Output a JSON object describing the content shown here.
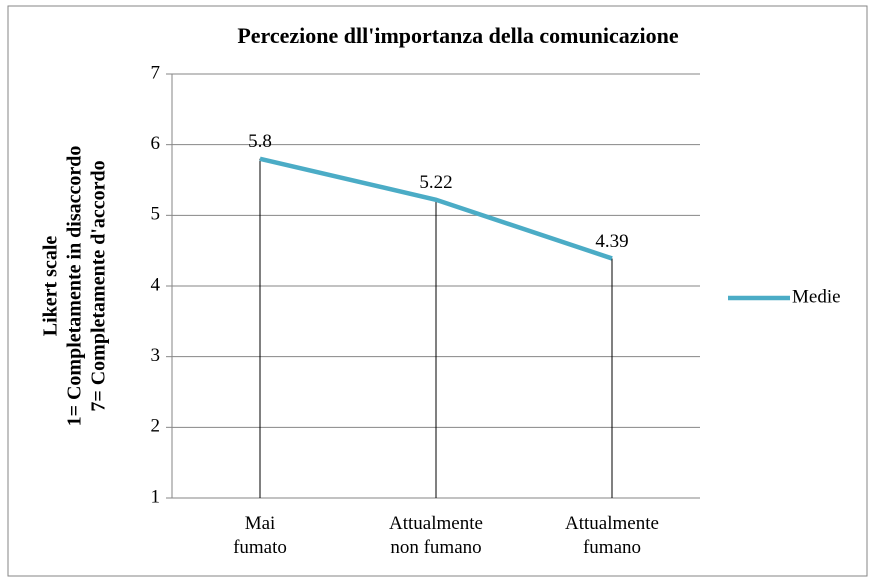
{
  "chart_data": {
    "type": "line",
    "title": "Percezione dll'importanza della comunicazione",
    "ylabel": [
      "Likert scale",
      "1= Completamente in disaccordo",
      "7= Completamente d'accordo"
    ],
    "categories": [
      "Mai\nfumato",
      "Attualmente\nnon fumano",
      "Attualmente\nfumano"
    ],
    "series": [
      {
        "name": "Medie",
        "color": "#4bacc6",
        "values": [
          5.8,
          5.22,
          4.39
        ]
      }
    ],
    "ylim": [
      1,
      7
    ],
    "yticks": [
      1,
      2,
      3,
      4,
      5,
      6,
      7
    ],
    "grid": true,
    "drop_lines": true,
    "legend": "right"
  }
}
